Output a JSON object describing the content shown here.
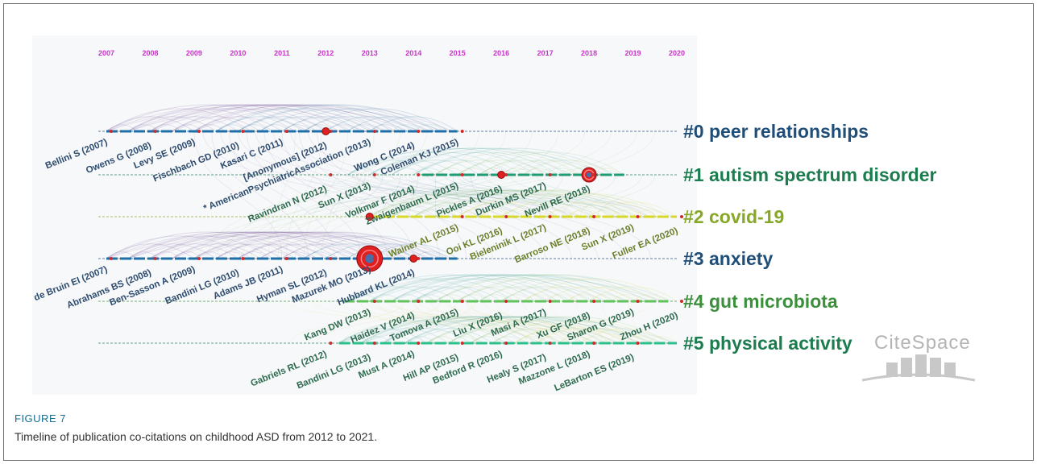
{
  "figure": {
    "label": "FIGURE 7",
    "caption": "Timeline of publication co-citations on childhood ASD from 2012 to 2021."
  },
  "chart_data": {
    "type": "timeline",
    "x_axis_years": [
      "2007",
      "2008",
      "2009",
      "2010",
      "2011",
      "2012",
      "2013",
      "2014",
      "2015",
      "2016",
      "2017",
      "2018",
      "2019",
      "2020"
    ],
    "clusters": [
      {
        "id": "#0",
        "label": "#0 peer relationships",
        "color": "#1f4e79",
        "start_year": 2007,
        "end_year": 2015.0
      },
      {
        "id": "#1",
        "label": "#1 autism spectrum disorder",
        "color": "#1b7c4e",
        "start_year": 2014.2,
        "end_year": 2018.8
      },
      {
        "id": "#2",
        "label": "#2 covid-19",
        "color": "#86a826",
        "start_year": 2013.0,
        "end_year": 2020.0
      },
      {
        "id": "#3",
        "label": "#3 anxiety",
        "color": "#1f4e79",
        "start_year": 2007.0,
        "end_year": 2015.0
      },
      {
        "id": "#4",
        "label": "#4 gut microbiota",
        "color": "#3c8f3c",
        "start_year": 2012.4,
        "end_year": 2019.8
      },
      {
        "id": "#5",
        "label": "#5 physical activity",
        "color": "#1b7c4e",
        "start_year": 2012.3,
        "end_year": 2020.0
      }
    ],
    "references": [
      {
        "label": "Bellini S (2007)",
        "cluster": 0,
        "year": 2007
      },
      {
        "label": "Owens G (2008)",
        "cluster": 0,
        "year": 2008
      },
      {
        "label": "Levy SE (2009)",
        "cluster": 0,
        "year": 2009
      },
      {
        "label": "Fischbach GD (2010)",
        "cluster": 0,
        "year": 2010
      },
      {
        "label": "Kasari C (2011)",
        "cluster": 0,
        "year": 2011
      },
      {
        "label": "[Anonymous] (2012)",
        "cluster": 0,
        "year": 2012
      },
      {
        "label": "* AmericanPsychiatricAssociation (2013)",
        "cluster": 0,
        "year": 2013
      },
      {
        "label": "Wong C (2014)",
        "cluster": 0,
        "year": 2014
      },
      {
        "label": "Coleman KJ (2015)",
        "cluster": 0,
        "year": 2015
      },
      {
        "label": "Ravindran N (2012)",
        "cluster": 1,
        "year": 2012
      },
      {
        "label": "Sun X (2013)",
        "cluster": 1,
        "year": 2013
      },
      {
        "label": "Volkmar F (2014)",
        "cluster": 1,
        "year": 2014
      },
      {
        "label": "Zwaigenbaum L (2015)",
        "cluster": 1,
        "year": 2015
      },
      {
        "label": "Pickles A (2016)",
        "cluster": 1,
        "year": 2016
      },
      {
        "label": "Durkin MS (2017)",
        "cluster": 1,
        "year": 2017
      },
      {
        "label": "Nevill RE (2018)",
        "cluster": 1,
        "year": 2018
      },
      {
        "label": "Wainer AL (2015)",
        "cluster": 2,
        "year": 2015
      },
      {
        "label": "Ooi KL (2016)",
        "cluster": 2,
        "year": 2016
      },
      {
        "label": "Bieleninik L (2017)",
        "cluster": 2,
        "year": 2017
      },
      {
        "label": "Barroso NE (2018)",
        "cluster": 2,
        "year": 2018
      },
      {
        "label": "Sun X (2019)",
        "cluster": 2,
        "year": 2019
      },
      {
        "label": "Fuller EA (2020)",
        "cluster": 2,
        "year": 2020
      },
      {
        "label": "de Bruin EI (2007)",
        "cluster": 3,
        "year": 2007
      },
      {
        "label": "Abrahams BS (2008)",
        "cluster": 3,
        "year": 2008
      },
      {
        "label": "Ben-Sasson A (2009)",
        "cluster": 3,
        "year": 2009
      },
      {
        "label": "Bandini LG (2010)",
        "cluster": 3,
        "year": 2010
      },
      {
        "label": "Adams JB (2011)",
        "cluster": 3,
        "year": 2011
      },
      {
        "label": "Hyman SL (2012)",
        "cluster": 3,
        "year": 2012
      },
      {
        "label": "Mazurek MO (2013)",
        "cluster": 3,
        "year": 2013
      },
      {
        "label": "Hubbard KL (2014)",
        "cluster": 3,
        "year": 2014
      },
      {
        "label": "Kang DW (2013)",
        "cluster": 4,
        "year": 2013
      },
      {
        "label": "Haidez V (2014)",
        "cluster": 4,
        "year": 2014
      },
      {
        "label": "Tomova A (2015)",
        "cluster": 4,
        "year": 2015
      },
      {
        "label": "Liu X (2016)",
        "cluster": 4,
        "year": 2016
      },
      {
        "label": "Masi A (2017)",
        "cluster": 4,
        "year": 2017
      },
      {
        "label": "Xu GF (2018)",
        "cluster": 4,
        "year": 2018
      },
      {
        "label": "Sharon G (2019)",
        "cluster": 4,
        "year": 2019
      },
      {
        "label": "Zhou H (2020)",
        "cluster": 4,
        "year": 2020
      },
      {
        "label": "Gabriels RL (2012)",
        "cluster": 5,
        "year": 2012
      },
      {
        "label": "Bandini LG (2013)",
        "cluster": 5,
        "year": 2013
      },
      {
        "label": "Must A (2014)",
        "cluster": 5,
        "year": 2014
      },
      {
        "label": "Hill AP (2015)",
        "cluster": 5,
        "year": 2015
      },
      {
        "label": "Bedford R (2016)",
        "cluster": 5,
        "year": 2016
      },
      {
        "label": "Healy S (2017)",
        "cluster": 5,
        "year": 2017
      },
      {
        "label": "Mazzone L (2018)",
        "cluster": 5,
        "year": 2018
      },
      {
        "label": "LeBarton ES (2019)",
        "cluster": 5,
        "year": 2019
      }
    ],
    "highlighted_nodes": [
      {
        "cluster": 3,
        "year": 2013,
        "size": "large"
      },
      {
        "cluster": 1,
        "year": 2018,
        "size": "medium"
      },
      {
        "cluster": 0,
        "year": 2012,
        "size": "small"
      },
      {
        "cluster": 2,
        "year": 2013,
        "size": "small"
      },
      {
        "cluster": 3,
        "year": 2014,
        "size": "small"
      },
      {
        "cluster": 1,
        "year": 2016,
        "size": "small"
      }
    ],
    "year_label_color": "#cc33cc",
    "watermark": "CiteSpace"
  }
}
